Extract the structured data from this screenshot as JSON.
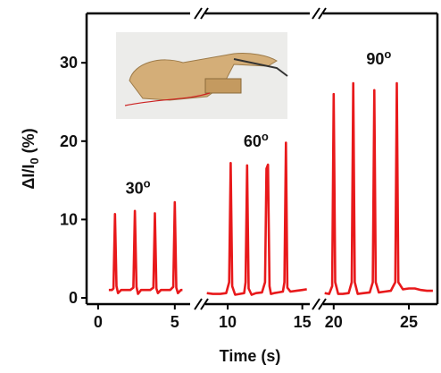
{
  "chart_data": [
    {
      "type": "line",
      "ylabel": [
        "ΔI/I",
        "0",
        " (%)"
      ],
      "ylim": [
        -0.8,
        36.3
      ],
      "yticks": [
        0,
        10,
        20,
        30
      ],
      "xlim": [
        -0.75,
        6.0
      ],
      "xticks": [
        0,
        5
      ],
      "color": "#e8191b",
      "annotation": [
        "30",
        "o"
      ],
      "x": [
        0.7,
        0.9,
        1.0,
        1.1,
        1.2,
        1.3,
        1.5,
        1.8,
        2.1,
        2.3,
        2.4,
        2.5,
        2.6,
        2.8,
        3.1,
        3.4,
        3.6,
        3.7,
        3.8,
        3.9,
        4.1,
        4.4,
        4.7,
        4.9,
        5.0,
        5.1,
        5.2,
        5.4,
        5.5
      ],
      "values": [
        1.0,
        1.0,
        1.2,
        10.7,
        1.5,
        0.6,
        1.0,
        1.0,
        1.0,
        1.3,
        11.1,
        1.4,
        0.5,
        1.0,
        1.0,
        1.0,
        1.3,
        10.8,
        1.2,
        0.6,
        1.0,
        1.0,
        1.0,
        1.4,
        12.2,
        1.3,
        0.6,
        1.0,
        1.0
      ]
    },
    {
      "type": "line",
      "ylim": [
        -0.8,
        36.3
      ],
      "xlabel": "Time (s)",
      "xlim": [
        8.5,
        15.5
      ],
      "xticks": [
        10,
        15
      ],
      "color": "#e8191b",
      "annotation": [
        "60",
        "o"
      ],
      "x": [
        8.6,
        9.0,
        9.5,
        9.9,
        10.1,
        10.2,
        10.3,
        10.5,
        10.8,
        11.1,
        11.2,
        11.3,
        11.4,
        11.6,
        11.9,
        12.3,
        12.5,
        12.6,
        12.7,
        12.8,
        12.9,
        13.1,
        13.4,
        13.7,
        13.8,
        13.9,
        14.0,
        14.2,
        14.6,
        15.0,
        15.3
      ],
      "values": [
        0.6,
        0.5,
        0.5,
        0.6,
        2.0,
        17.2,
        1.5,
        0.4,
        0.5,
        0.6,
        2.0,
        16.9,
        1.2,
        0.4,
        0.6,
        0.7,
        2.0,
        16.5,
        17.0,
        1.5,
        0.5,
        0.6,
        0.7,
        0.8,
        2.0,
        19.8,
        1.3,
        0.8,
        0.9,
        1.0,
        1.1
      ]
    },
    {
      "type": "line",
      "ylim": [
        -0.8,
        36.3
      ],
      "xlim": [
        19.3,
        26.9
      ],
      "xticks": [
        20,
        25
      ],
      "color": "#e8191b",
      "annotation": [
        "90",
        "o"
      ],
      "x": [
        19.4,
        19.7,
        19.9,
        20.0,
        20.1,
        20.3,
        20.6,
        21.0,
        21.2,
        21.3,
        21.4,
        21.6,
        22.0,
        22.4,
        22.6,
        22.7,
        22.8,
        23.0,
        23.4,
        23.8,
        24.1,
        24.2,
        24.3,
        24.6,
        25.0,
        25.4,
        25.8,
        26.2,
        26.6
      ],
      "values": [
        0.6,
        0.5,
        1.5,
        26.0,
        2.0,
        0.5,
        0.5,
        0.6,
        2.0,
        27.4,
        2.0,
        0.5,
        0.6,
        0.7,
        2.0,
        26.5,
        2.0,
        0.7,
        0.8,
        0.9,
        2.0,
        27.4,
        2.0,
        1.1,
        1.2,
        1.2,
        1.0,
        0.9,
        0.9
      ]
    }
  ]
}
